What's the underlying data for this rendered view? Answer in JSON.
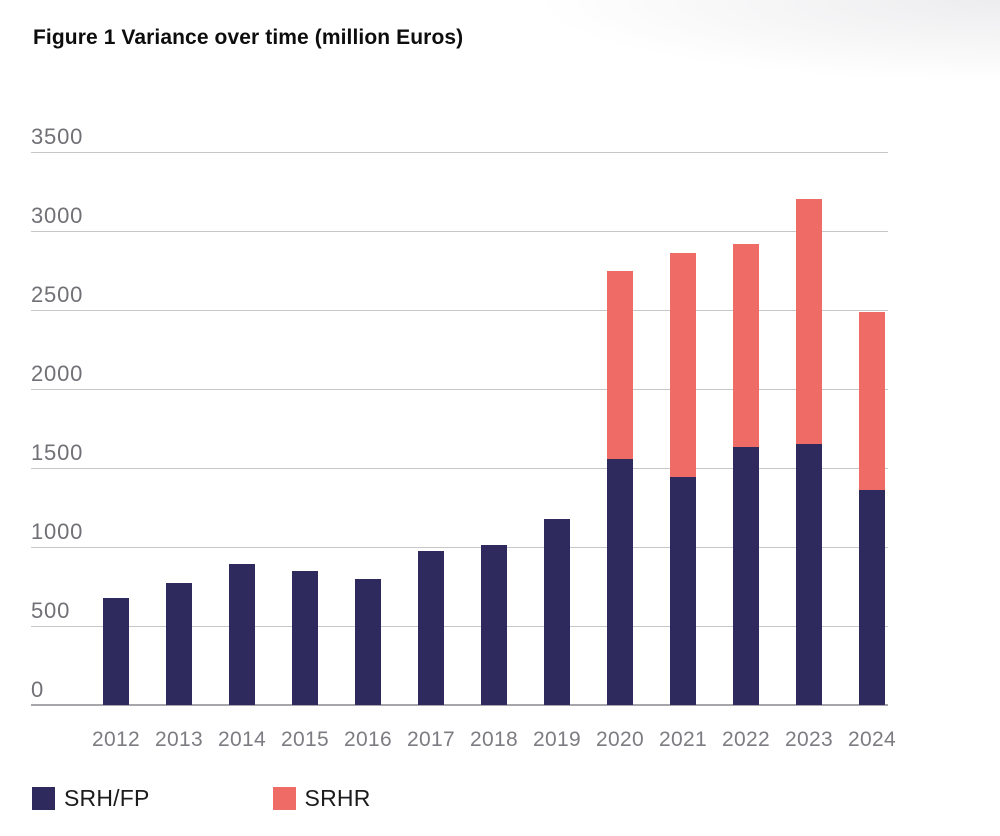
{
  "figure": {
    "title": "Figure 1 Variance over time (million Euros)"
  },
  "colors": {
    "srhfp": "#2e2a5d",
    "srhr": "#ee6b66",
    "gridline": "#c7c6ca",
    "baseline": "#a7a7ab",
    "axis_text": "#75747a",
    "title_text": "#0d0d0d"
  },
  "chart_data": {
    "type": "bar",
    "stacked": true,
    "title": "Figure 1 Variance over time (million Euros)",
    "categories": [
      "2012",
      "2013",
      "2014",
      "2015",
      "2016",
      "2017",
      "2018",
      "2019",
      "2020",
      "2021",
      "2022",
      "2023",
      "2024"
    ],
    "series": [
      {
        "name": "SRH/FP",
        "color": "#2e2a5d",
        "values": [
          675,
          770,
          890,
          845,
          795,
          975,
          1015,
          1180,
          1560,
          1445,
          1635,
          1655,
          1360
        ]
      },
      {
        "name": "SRHR",
        "color": "#ee6b66",
        "values": [
          0,
          0,
          0,
          0,
          0,
          0,
          0,
          0,
          1190,
          1415,
          1285,
          1545,
          1125
        ]
      }
    ],
    "xlabel": "",
    "ylabel": "",
    "ylim": [
      0,
      3500
    ],
    "yticks": [
      0,
      500,
      1000,
      1500,
      2000,
      2500,
      3000,
      3500
    ],
    "grid": "horizontal",
    "legend_position": "bottom",
    "legend": [
      {
        "label": "SRH/FP",
        "color": "#2e2a5d"
      },
      {
        "label": "SRHR",
        "color": "#ee6b66"
      }
    ]
  }
}
